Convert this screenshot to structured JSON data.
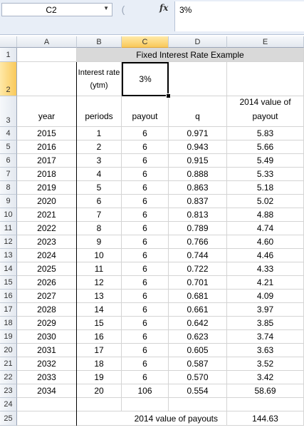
{
  "formula_bar": {
    "name_box": "C2",
    "formula": "3%"
  },
  "columns": [
    "A",
    "B",
    "C",
    "D",
    "E"
  ],
  "selected_column": "C",
  "selected_row": "2",
  "title": "Fixed Interest Rate Example",
  "interest_label": "Interest rate (ytm)",
  "interest_value": "3%",
  "headers": {
    "year": "year",
    "periods": "periods",
    "payout": "payout",
    "q": "q",
    "value": "2014 value of payout"
  },
  "rows": [
    {
      "year": "2015",
      "periods": "1",
      "payout": "6",
      "q": "0.971",
      "value": "5.83"
    },
    {
      "year": "2016",
      "periods": "2",
      "payout": "6",
      "q": "0.943",
      "value": "5.66"
    },
    {
      "year": "2017",
      "periods": "3",
      "payout": "6",
      "q": "0.915",
      "value": "5.49"
    },
    {
      "year": "2018",
      "periods": "4",
      "payout": "6",
      "q": "0.888",
      "value": "5.33"
    },
    {
      "year": "2019",
      "periods": "5",
      "payout": "6",
      "q": "0.863",
      "value": "5.18"
    },
    {
      "year": "2020",
      "periods": "6",
      "payout": "6",
      "q": "0.837",
      "value": "5.02"
    },
    {
      "year": "2021",
      "periods": "7",
      "payout": "6",
      "q": "0.813",
      "value": "4.88"
    },
    {
      "year": "2022",
      "periods": "8",
      "payout": "6",
      "q": "0.789",
      "value": "4.74"
    },
    {
      "year": "2023",
      "periods": "9",
      "payout": "6",
      "q": "0.766",
      "value": "4.60"
    },
    {
      "year": "2024",
      "periods": "10",
      "payout": "6",
      "q": "0.744",
      "value": "4.46"
    },
    {
      "year": "2025",
      "periods": "11",
      "payout": "6",
      "q": "0.722",
      "value": "4.33"
    },
    {
      "year": "2026",
      "periods": "12",
      "payout": "6",
      "q": "0.701",
      "value": "4.21"
    },
    {
      "year": "2027",
      "periods": "13",
      "payout": "6",
      "q": "0.681",
      "value": "4.09"
    },
    {
      "year": "2028",
      "periods": "14",
      "payout": "6",
      "q": "0.661",
      "value": "3.97"
    },
    {
      "year": "2029",
      "periods": "15",
      "payout": "6",
      "q": "0.642",
      "value": "3.85"
    },
    {
      "year": "2030",
      "periods": "16",
      "payout": "6",
      "q": "0.623",
      "value": "3.74"
    },
    {
      "year": "2031",
      "periods": "17",
      "payout": "6",
      "q": "0.605",
      "value": "3.63"
    },
    {
      "year": "2032",
      "periods": "18",
      "payout": "6",
      "q": "0.587",
      "value": "3.52"
    },
    {
      "year": "2033",
      "periods": "19",
      "payout": "6",
      "q": "0.570",
      "value": "3.42"
    },
    {
      "year": "2034",
      "periods": "20",
      "payout": "106",
      "q": "0.554",
      "value": "58.69"
    }
  ],
  "total_label": "2014 value of payouts",
  "total_value": "144.63",
  "row_numbers": [
    "1",
    "2",
    "3",
    "4",
    "5",
    "6",
    "7",
    "8",
    "9",
    "10",
    "11",
    "12",
    "13",
    "14",
    "15",
    "16",
    "17",
    "18",
    "19",
    "20",
    "21",
    "22",
    "23",
    "24",
    "25"
  ]
}
